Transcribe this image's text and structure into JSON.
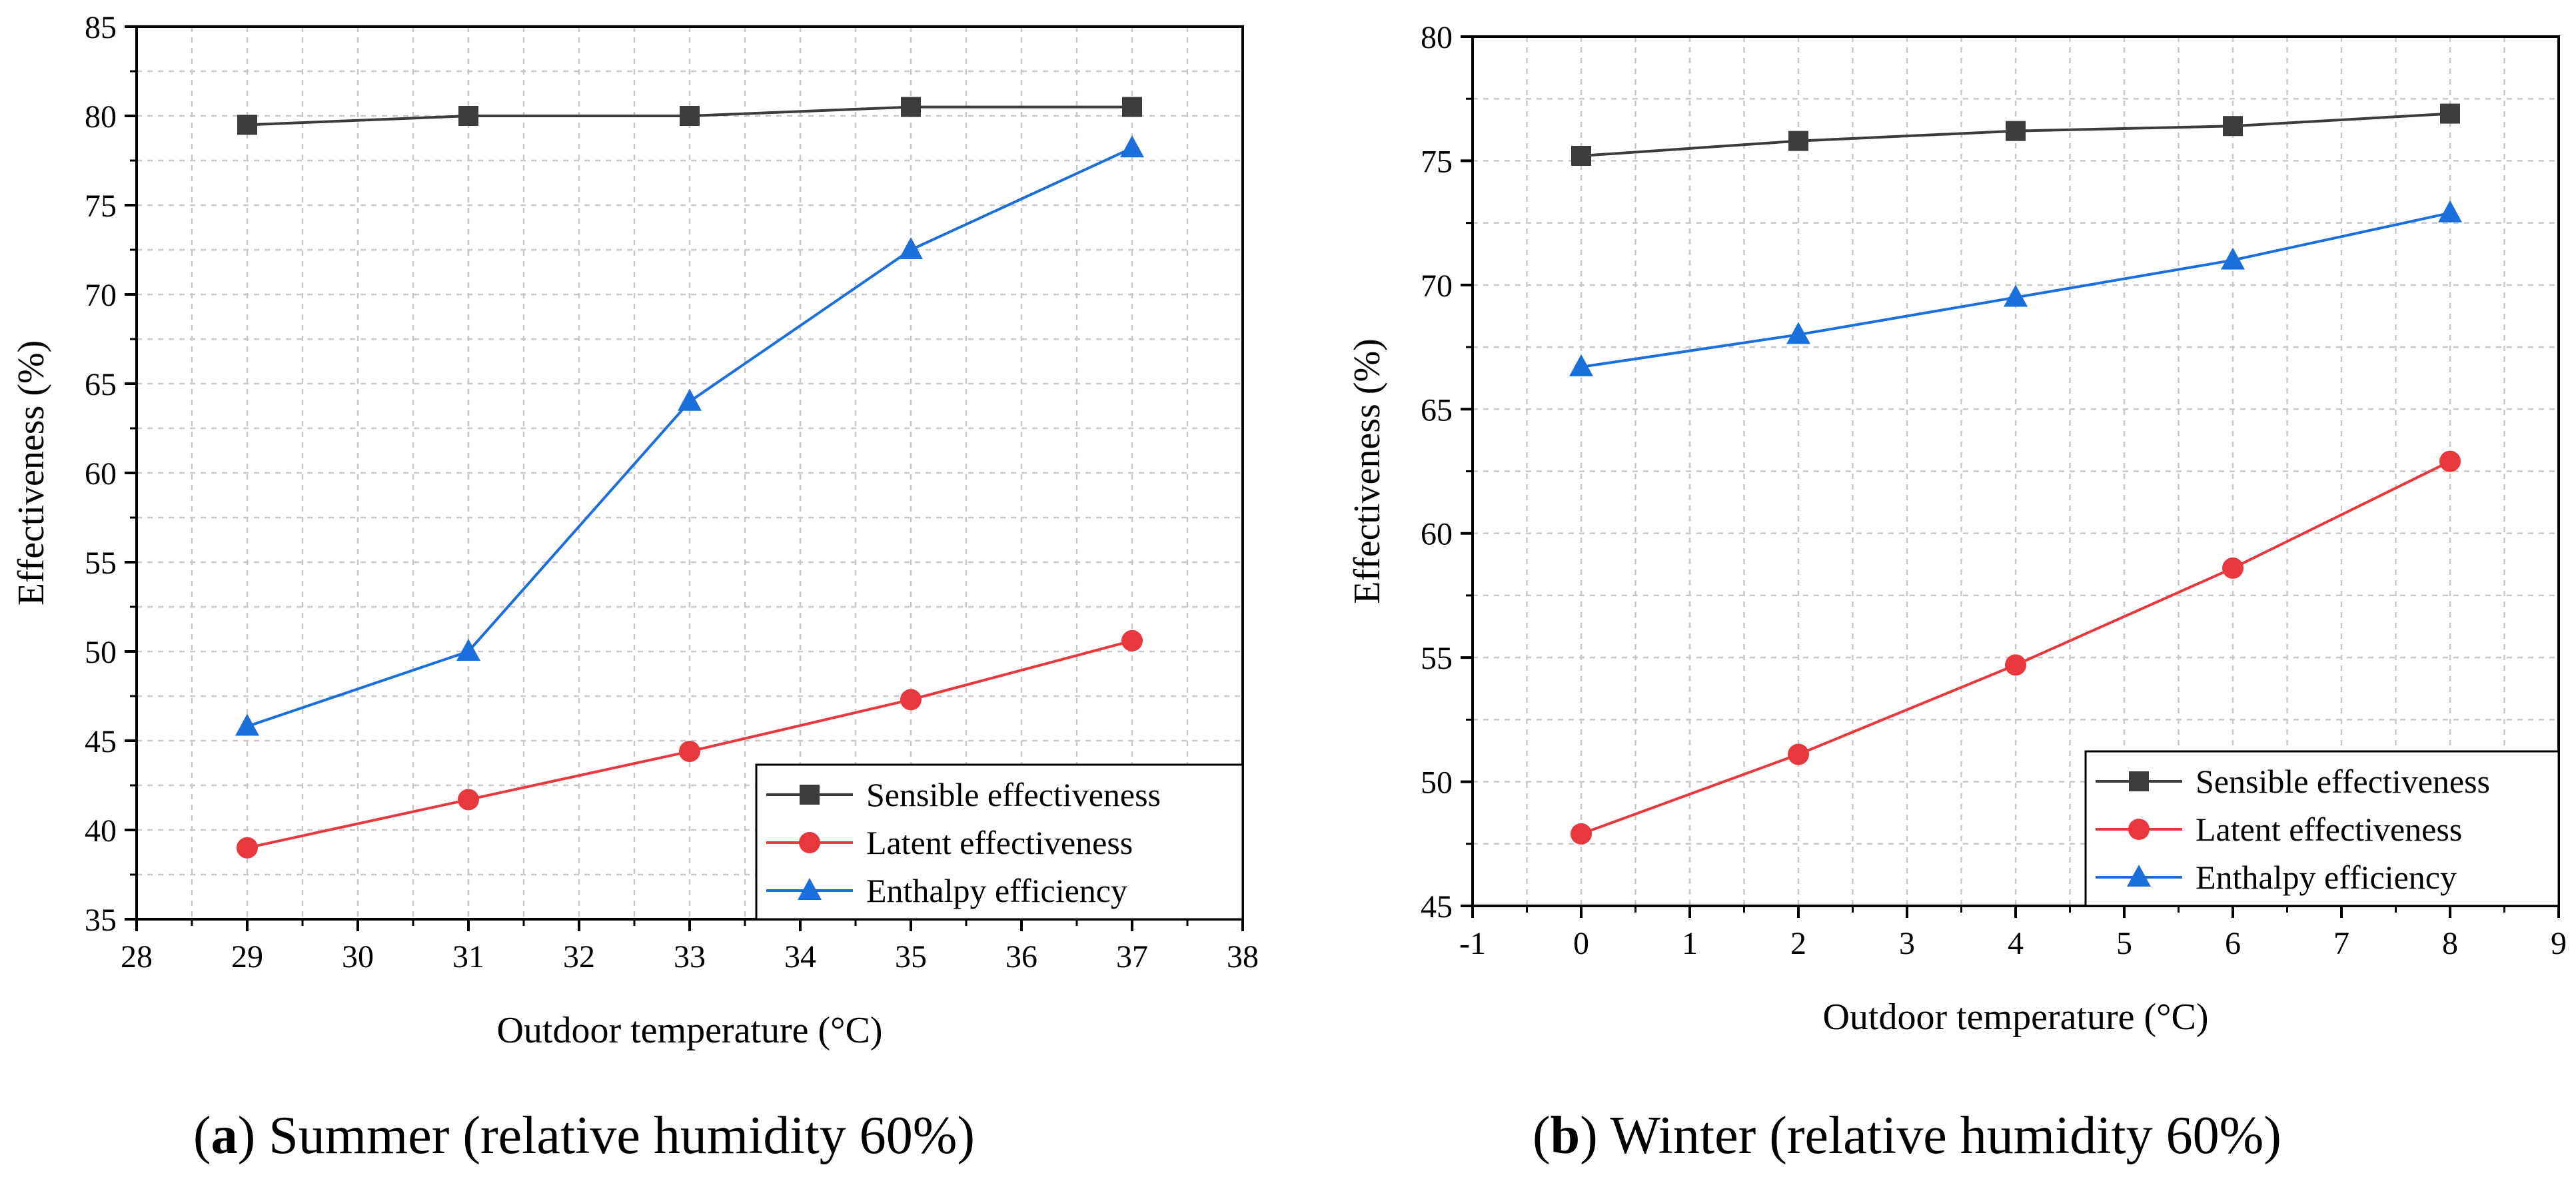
{
  "chart_data": [
    {
      "type": "line",
      "panel_label": "a",
      "caption": "Summer (relative humidity 60%)",
      "xlabel": "Outdoor temperature (°C)",
      "ylabel": "Effectiveness (%)",
      "xlim": [
        28,
        38
      ],
      "ylim": [
        35,
        85
      ],
      "xticks": [
        28,
        29,
        30,
        31,
        32,
        33,
        34,
        35,
        36,
        37,
        38
      ],
      "yticks": [
        35,
        40,
        45,
        50,
        55,
        60,
        65,
        70,
        75,
        80,
        85
      ],
      "grid": true,
      "legend_position": "bottom-right",
      "x": [
        29,
        31,
        33,
        35,
        37
      ],
      "series": [
        {
          "name": "Sensible effectiveness",
          "color": "#3c3c3c",
          "marker": "square",
          "values": [
            79.5,
            80.0,
            80.0,
            80.5,
            80.5
          ]
        },
        {
          "name": "Latent effectiveness",
          "color": "#e8383d",
          "marker": "circle",
          "values": [
            39.0,
            41.7,
            44.4,
            47.3,
            50.6
          ]
        },
        {
          "name": "Enthalpy efficiency",
          "color": "#1a6fdc",
          "marker": "triangle",
          "values": [
            45.8,
            50.0,
            64.0,
            72.5,
            78.2
          ]
        }
      ]
    },
    {
      "type": "line",
      "panel_label": "b",
      "caption": "Winter (relative humidity 60%)",
      "xlabel": "Outdoor temperature (°C)",
      "ylabel": "Effectiveness (%)",
      "xlim": [
        -1,
        9
      ],
      "ylim": [
        45,
        80
      ],
      "xticks": [
        -1,
        0,
        1,
        2,
        3,
        4,
        5,
        6,
        7,
        8,
        9
      ],
      "yticks": [
        45,
        50,
        55,
        60,
        65,
        70,
        75,
        80
      ],
      "grid": true,
      "legend_position": "bottom-right",
      "x": [
        0,
        2,
        4,
        6,
        8
      ],
      "series": [
        {
          "name": "Sensible effectiveness",
          "color": "#3c3c3c",
          "marker": "square",
          "values": [
            75.2,
            75.8,
            76.2,
            76.4,
            76.9
          ]
        },
        {
          "name": "Latent effectiveness",
          "color": "#e8383d",
          "marker": "circle",
          "values": [
            47.9,
            51.1,
            54.7,
            58.6,
            62.9
          ]
        },
        {
          "name": "Enthalpy efficiency",
          "color": "#1a6fdc",
          "marker": "triangle",
          "values": [
            66.7,
            68.0,
            69.5,
            71.0,
            72.9
          ]
        }
      ]
    }
  ]
}
